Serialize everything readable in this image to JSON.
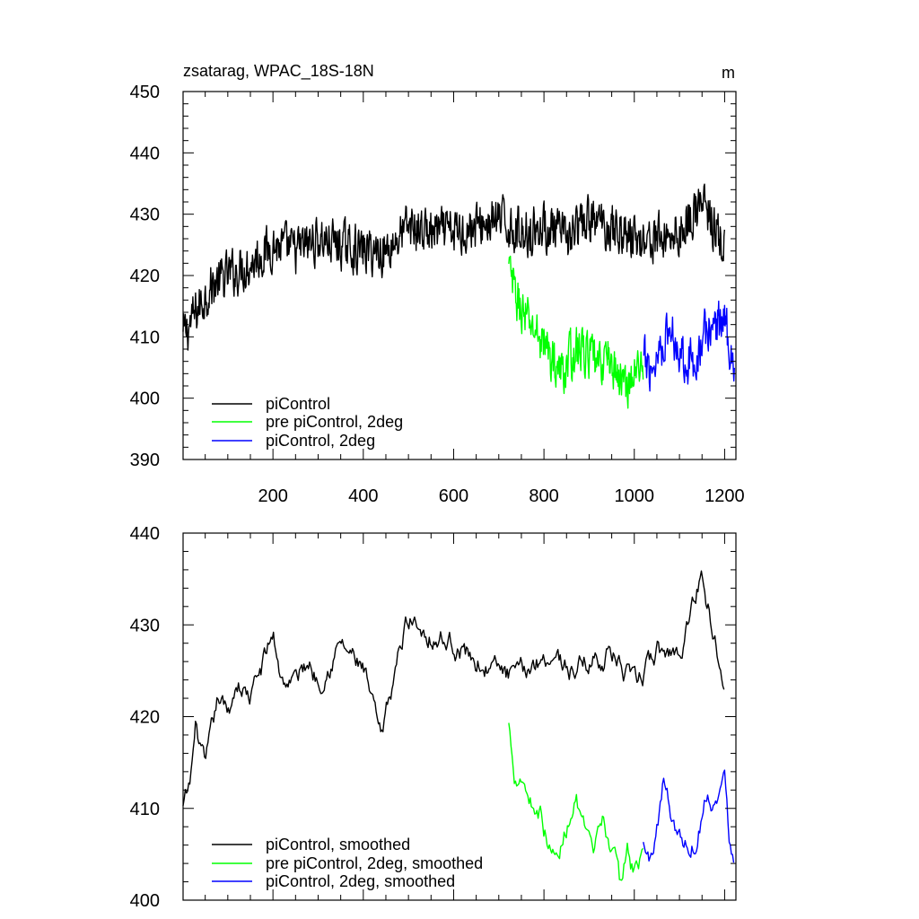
{
  "chart_data": [
    {
      "type": "line",
      "title": "zsatarag, WPAC_18S-18N",
      "units": "m",
      "xlim": [
        1,
        1225
      ],
      "ylim": [
        390,
        450
      ],
      "x_ticks": [
        200,
        400,
        600,
        800,
        1000,
        1200
      ],
      "x_tick_labels": [
        "200",
        "400",
        "600",
        "800",
        "1000",
        "1200"
      ],
      "y_ticks": [
        390,
        400,
        410,
        420,
        430,
        440,
        450
      ],
      "y_tick_labels": [
        "390",
        "400",
        "410",
        "420",
        "430",
        "440",
        "450"
      ],
      "legend": [
        {
          "label": "piControl",
          "color": "#000000"
        },
        {
          "label": "pre piControl, 2deg",
          "color": "#00ff00"
        },
        {
          "label": "piControl, 2deg",
          "color": "#0000ff"
        }
      ],
      "series": [
        {
          "name": "piControl",
          "color": "#000000",
          "style": "noisy",
          "x_start": 1,
          "x_end": 1200,
          "x": [
            1,
            30,
            60,
            100,
            150,
            200,
            250,
            300,
            350,
            400,
            450,
            500,
            550,
            600,
            650,
            700,
            750,
            800,
            850,
            900,
            950,
            1000,
            1050,
            1100,
            1150,
            1200
          ],
          "y": [
            410,
            414,
            418,
            420,
            422,
            425,
            424,
            426,
            425,
            424,
            424,
            428,
            427,
            427,
            428,
            429,
            427,
            428,
            426,
            429,
            428,
            426,
            426,
            427,
            432,
            424
          ]
        },
        {
          "name": "pre piControl, 2deg",
          "color": "#00ff00",
          "style": "noisy",
          "x_start": 722,
          "x_end": 1020,
          "x": [
            722,
            740,
            760,
            780,
            800,
            820,
            840,
            860,
            880,
            900,
            920,
            940,
            960,
            980,
            1000,
            1020
          ],
          "y": [
            421,
            416,
            413,
            411,
            409,
            406,
            404,
            407,
            408,
            407,
            405,
            407,
            404,
            402,
            404,
            406
          ]
        },
        {
          "name": "piControl, 2deg",
          "color": "#0000ff",
          "style": "noisy",
          "x_start": 1020,
          "x_end": 1222,
          "x": [
            1020,
            1040,
            1060,
            1080,
            1100,
            1120,
            1140,
            1160,
            1180,
            1200,
            1222
          ],
          "y": [
            406,
            405,
            409,
            411,
            408,
            406,
            407,
            411,
            412,
            413,
            405
          ]
        }
      ]
    },
    {
      "type": "line",
      "title": "",
      "xlim": [
        1,
        1225
      ],
      "ylim": [
        400,
        440
      ],
      "x_ticks": [
        200,
        400,
        600,
        800,
        1000,
        1200
      ],
      "x_tick_labels": [],
      "y_ticks": [
        400,
        410,
        420,
        430,
        440
      ],
      "y_tick_labels": [
        "400",
        "410",
        "420",
        "430",
        "440"
      ],
      "legend": [
        {
          "label": "piControl, smoothed",
          "color": "#000000"
        },
        {
          "label": "pre piControl, 2deg, smoothed",
          "color": "#00ff00"
        },
        {
          "label": "piControl, 2deg, smoothed",
          "color": "#0000ff"
        }
      ],
      "series": [
        {
          "name": "piControl, smoothed",
          "color": "#000000",
          "style": "smooth",
          "x_start": 1,
          "x_end": 1200,
          "x": [
            1,
            15,
            30,
            50,
            80,
            100,
            120,
            150,
            180,
            200,
            220,
            250,
            280,
            300,
            350,
            400,
            440,
            470,
            500,
            550,
            600,
            650,
            700,
            740,
            780,
            820,
            860,
            900,
            950,
            1000,
            1050,
            1100,
            1150,
            1180,
            1200
          ],
          "y": [
            410,
            412,
            419,
            414,
            422,
            420,
            424,
            422,
            426,
            429,
            424,
            424,
            426,
            424,
            428,
            425,
            417,
            425,
            431,
            429,
            428,
            426,
            425,
            424,
            426,
            427,
            425,
            426,
            427,
            423,
            427,
            427,
            436,
            428,
            425
          ]
        },
        {
          "name": "pre piControl, 2deg, smoothed",
          "color": "#00ff00",
          "style": "smooth",
          "x_start": 722,
          "x_end": 1020,
          "x": [
            722,
            735,
            750,
            770,
            790,
            810,
            830,
            850,
            870,
            890,
            910,
            930,
            950,
            970,
            985,
            1000,
            1020
          ],
          "y": [
            419,
            414,
            414,
            411,
            410,
            406,
            404,
            408,
            412,
            407,
            404,
            408,
            406,
            401,
            406,
            403,
            406
          ]
        },
        {
          "name": "piControl, 2deg, smoothed",
          "color": "#0000ff",
          "style": "smooth",
          "x_start": 1020,
          "x_end": 1222,
          "x": [
            1020,
            1035,
            1050,
            1065,
            1080,
            1100,
            1120,
            1140,
            1160,
            1180,
            1200,
            1210,
            1222
          ],
          "y": [
            406,
            404,
            408,
            413,
            410,
            407,
            406,
            407,
            412,
            411,
            413,
            407,
            405
          ]
        }
      ]
    }
  ]
}
